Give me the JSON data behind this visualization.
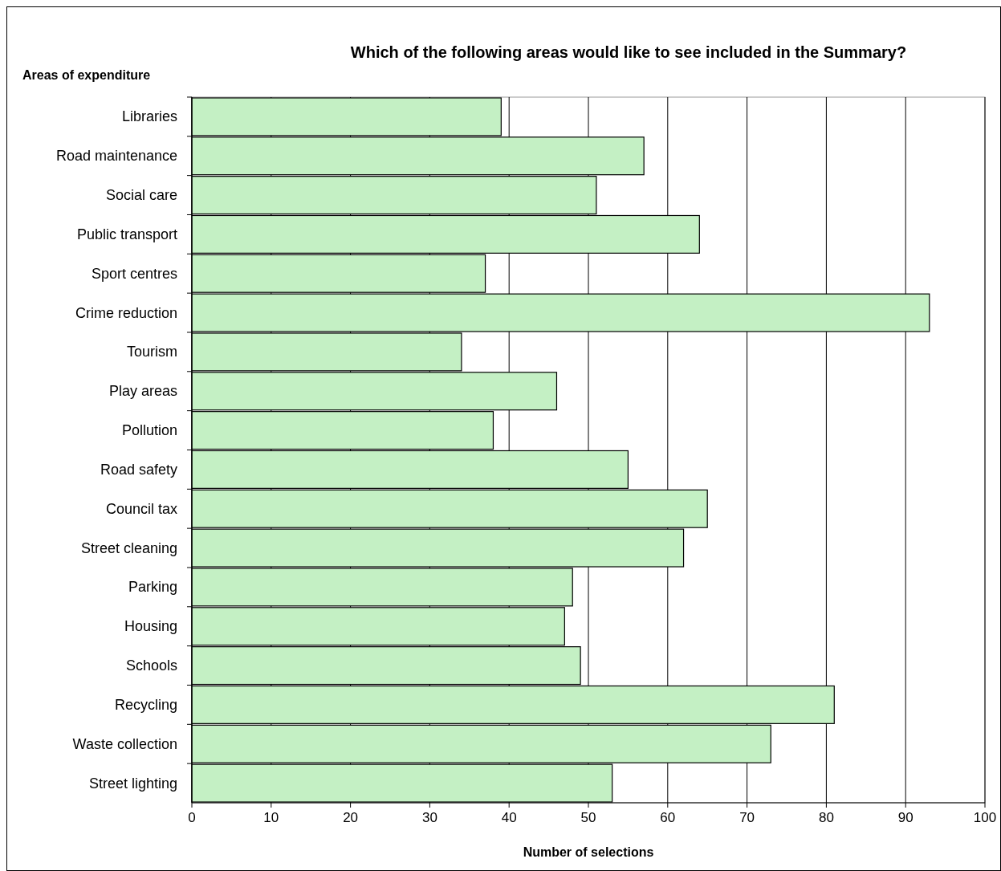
{
  "chart_data": {
    "type": "bar",
    "orientation": "horizontal",
    "title": "Which of the following areas would like to see included in the Summary?",
    "ylabel": "Areas of expenditure",
    "xlabel": "Number of selections",
    "categories": [
      "Libraries",
      "Road maintenance",
      "Social care",
      "Public transport",
      "Sport centres",
      "Crime reduction",
      "Tourism",
      "Play areas",
      "Pollution",
      "Road safety",
      "Council tax",
      "Street cleaning",
      "Parking",
      "Housing",
      "Schools",
      "Recycling",
      "Waste collection",
      "Street lighting"
    ],
    "values": [
      39,
      57,
      51,
      64,
      37,
      93,
      34,
      46,
      38,
      55,
      65,
      62,
      48,
      47,
      49,
      81,
      73,
      53
    ],
    "color": "#c4f0c4",
    "xlim": [
      0,
      100
    ],
    "xticks": [
      0,
      10,
      20,
      30,
      40,
      50,
      60,
      70,
      80,
      90,
      100
    ],
    "grid": "x"
  }
}
